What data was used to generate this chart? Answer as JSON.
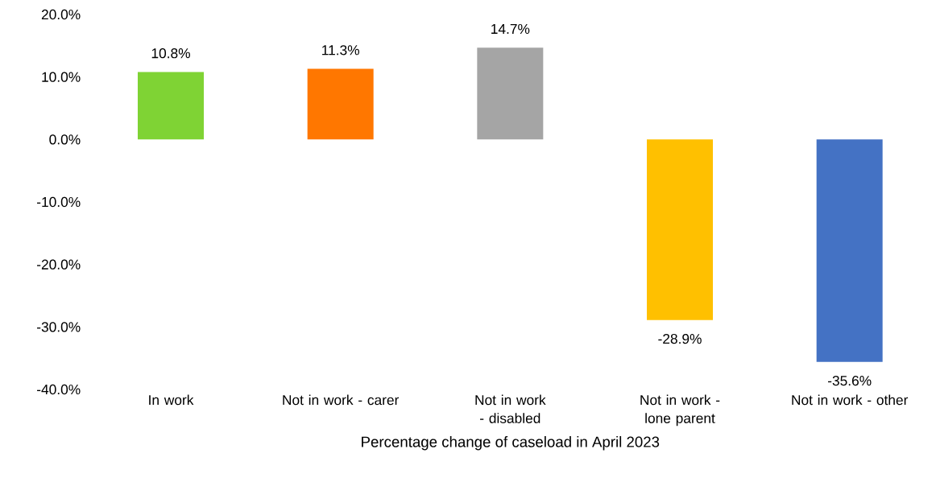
{
  "chart_data": {
    "type": "bar",
    "xlabel": "Percentage change of caseload in April 2023",
    "categories": [
      "In work",
      "Not in work - carer",
      "Not in work - disabled",
      "Not in work - lone parent",
      "Not in work - other"
    ],
    "values": [
      10.8,
      11.3,
      14.7,
      -28.9,
      -35.6
    ],
    "colors": [
      "#7fd334",
      "#ff7700",
      "#a5a5a5",
      "#ffc000",
      "#4472c4"
    ],
    "value_labels": [
      "10.8%",
      "11.3%",
      "14.7%",
      "-28.9%",
      "-35.6%"
    ],
    "ylim": [
      -40,
      20
    ],
    "yticks": [
      {
        "value": -40,
        "label": "-40.0%"
      },
      {
        "value": -30,
        "label": "-30.0%"
      },
      {
        "value": -20,
        "label": "-20.0%"
      },
      {
        "value": -10,
        "label": "-10.0%"
      },
      {
        "value": 0,
        "label": "0.0%"
      },
      {
        "value": 10,
        "label": "10.0%"
      },
      {
        "value": 20,
        "label": "20.0%"
      }
    ],
    "grid": false
  }
}
